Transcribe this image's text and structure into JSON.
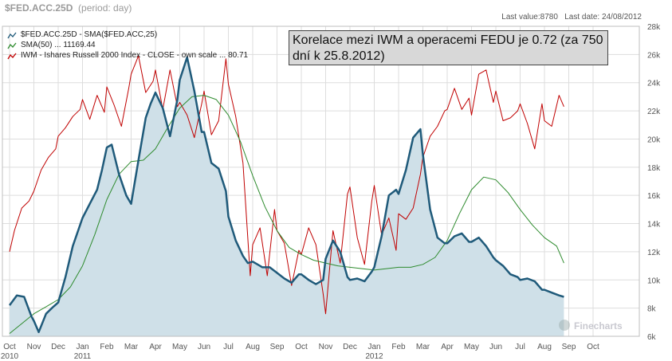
{
  "header": {
    "symbol": "$FED.ACC.25D",
    "period": "(period: day)",
    "last_value_label": "Last value:",
    "last_value": "8780",
    "last_date_label": "Last date:",
    "last_date": "24/08/2012",
    "watermark": "Finecharts"
  },
  "annotation": "Korelace mezi IWM a operacemi FEDU je 0.72 (za 750 dní k 25.8.2012)",
  "colors": {
    "fed_line": "#1f5a7a",
    "fed_fill": "#cfe0e8",
    "sma_line": "#2e8b2e",
    "iwm_line": "#c00000",
    "grid": "#dddddd"
  },
  "chart_data": {
    "type": "line",
    "title": "$FED.ACC.25D (period: day)",
    "xlabel": "",
    "ylabel": "",
    "ylim": [
      6000,
      28000
    ],
    "x_labels": [
      "Oct",
      "Nov",
      "Dec",
      "Jan",
      "Feb",
      "Mar",
      "Apr",
      "May",
      "Jun",
      "Jul",
      "Aug",
      "Sep",
      "Oct",
      "Nov",
      "Dec",
      "Jan",
      "Feb",
      "Mar",
      "Apr",
      "May",
      "Jun",
      "Jul",
      "Aug",
      "Sep",
      "Oct"
    ],
    "year_labels": [
      {
        "month_index": 0,
        "label": "2010"
      },
      {
        "month_index": 3,
        "label": "2011"
      },
      {
        "month_index": 15,
        "label": "2012"
      }
    ],
    "y_ticks": [
      "6k",
      "8k",
      "10k",
      "12k",
      "14k",
      "16k",
      "18k",
      "20k",
      "22k",
      "24k",
      "26k",
      "28k"
    ],
    "y_tick_values": [
      6000,
      8000,
      10000,
      12000,
      14000,
      16000,
      18000,
      20000,
      22000,
      24000,
      26000,
      28000
    ],
    "grid": true,
    "legend_position": "top-left",
    "legend": [
      "$FED.ACC.25D - SMA($FED.ACC,25)",
      "SMA(50) ... 11169.44",
      "IWM - Ishares Russell 2000 Index - CLOSE - own scale ... 80.71"
    ],
    "series": [
      {
        "name": "$FED.ACC.25D - SMA($FED.ACC,25)",
        "x": [
          0,
          0.3,
          0.6,
          0.9,
          1.0,
          1.2,
          1.5,
          1.8,
          2.0,
          2.3,
          2.6,
          3.0,
          3.3,
          3.6,
          3.8,
          4.0,
          4.2,
          4.5,
          4.8,
          5.0,
          5.3,
          5.6,
          5.8,
          6.0,
          6.3,
          6.6,
          6.9,
          7.0,
          7.3,
          7.6,
          7.9,
          8.0,
          8.3,
          8.6,
          8.9,
          9.0,
          9.3,
          9.6,
          9.8,
          10.0,
          10.2,
          10.4,
          10.7,
          11.0,
          11.3,
          11.6,
          11.9,
          12.0,
          12.3,
          12.6,
          12.9,
          13.0,
          13.3,
          13.6,
          13.9,
          14.0,
          14.3,
          14.6,
          14.9,
          15.0,
          15.3,
          15.6,
          15.9,
          16.0,
          16.3,
          16.6,
          16.9,
          17.0,
          17.3,
          17.6,
          17.9,
          18.0,
          18.3,
          18.6,
          18.9,
          19.0,
          19.3,
          19.6,
          19.9,
          20.0,
          20.3,
          20.6,
          20.9,
          21.0,
          21.3,
          21.6,
          21.9,
          22.0,
          22.3,
          22.6,
          22.8
        ],
        "values": [
          8200,
          8900,
          8800,
          7400,
          7100,
          6300,
          7600,
          8100,
          8400,
          10200,
          12400,
          14400,
          15400,
          16400,
          17800,
          19400,
          19600,
          17500,
          16000,
          15400,
          18500,
          21500,
          22500,
          23300,
          22200,
          20200,
          22800,
          24200,
          25800,
          23400,
          20500,
          20500,
          18300,
          17900,
          16300,
          14500,
          12800,
          11700,
          11200,
          11300,
          11100,
          10900,
          10900,
          10500,
          10100,
          9800,
          10400,
          10400,
          10000,
          9700,
          10000,
          11500,
          12800,
          12000,
          10200,
          10000,
          10100,
          9900,
          10600,
          10900,
          13100,
          16000,
          16400,
          16100,
          17800,
          20100,
          20700,
          18900,
          15000,
          13000,
          12600,
          12600,
          13100,
          13300,
          12700,
          12700,
          13000,
          12400,
          11600,
          11400,
          11000,
          10400,
          10200,
          10000,
          10100,
          9900,
          9300,
          9300,
          9100,
          8900,
          8800
        ]
      },
      {
        "name": "SMA(50) ... 11169.44",
        "x": [
          0,
          0.5,
          1.0,
          1.5,
          2.0,
          2.5,
          3.0,
          3.5,
          4.0,
          4.5,
          5.0,
          5.5,
          6.0,
          6.5,
          7.0,
          7.5,
          8.0,
          8.5,
          9.0,
          9.5,
          10.0,
          10.5,
          11.0,
          11.5,
          12.0,
          12.5,
          13.0,
          13.5,
          14.0,
          14.5,
          15.0,
          15.5,
          16.0,
          16.5,
          17.0,
          17.5,
          18.0,
          18.5,
          19.0,
          19.5,
          20.0,
          20.5,
          21.0,
          21.5,
          22.0,
          22.5,
          22.8
        ],
        "values": [
          6200,
          6900,
          7600,
          8100,
          8600,
          9500,
          11000,
          13200,
          15700,
          17500,
          18400,
          18500,
          19300,
          20800,
          22200,
          23000,
          23100,
          22800,
          21700,
          19800,
          17400,
          15200,
          13500,
          12300,
          11800,
          11400,
          11200,
          11000,
          10900,
          10800,
          10700,
          10800,
          10900,
          10900,
          11100,
          11600,
          12800,
          14700,
          16400,
          17300,
          17100,
          16200,
          15000,
          13900,
          13000,
          12400,
          11200
        ]
      },
      {
        "name": "IWM - Ishares Russell 2000 Index - CLOSE - own scale ... 80.71",
        "x": [
          0,
          0.2,
          0.5,
          0.8,
          1.0,
          1.3,
          1.6,
          1.9,
          2.0,
          2.3,
          2.6,
          2.9,
          3.0,
          3.3,
          3.6,
          3.9,
          4.0,
          4.3,
          4.6,
          4.9,
          5.0,
          5.3,
          5.6,
          5.9,
          6.0,
          6.3,
          6.6,
          6.9,
          7.0,
          7.3,
          7.6,
          7.9,
          8.0,
          8.3,
          8.6,
          8.9,
          9.0,
          9.3,
          9.6,
          9.9,
          10.0,
          10.3,
          10.6,
          10.9,
          11.0,
          11.3,
          11.6,
          11.9,
          12.0,
          12.3,
          12.6,
          12.9,
          13.0,
          13.3,
          13.6,
          13.9,
          14.0,
          14.3,
          14.6,
          14.9,
          15.0,
          15.3,
          15.6,
          15.9,
          16.0,
          16.3,
          16.6,
          16.9,
          17.0,
          17.3,
          17.6,
          17.9,
          18.0,
          18.3,
          18.6,
          18.9,
          19.0,
          19.3,
          19.6,
          19.9,
          20.0,
          20.3,
          20.6,
          20.9,
          21.0,
          21.3,
          21.6,
          21.9,
          22.0,
          22.3,
          22.6,
          22.8
        ],
        "values": [
          12000,
          13500,
          15100,
          15600,
          16300,
          17800,
          18700,
          19300,
          20200,
          20800,
          21600,
          22100,
          22800,
          21400,
          23100,
          21900,
          23700,
          22400,
          20900,
          23600,
          24600,
          25900,
          23300,
          24100,
          24900,
          22100,
          24900,
          22300,
          22600,
          21700,
          20100,
          22500,
          23400,
          20300,
          21300,
          25700,
          23900,
          21600,
          18300,
          10300,
          12500,
          13700,
          10300,
          15000,
          13500,
          12600,
          9600,
          12100,
          11800,
          13700,
          12500,
          9000,
          7600,
          13500,
          11200,
          16100,
          16600,
          13000,
          11100,
          15600,
          16700,
          13200,
          14400,
          12100,
          14700,
          14300,
          15100,
          17500,
          18700,
          20200,
          20900,
          22000,
          22100,
          23600,
          22100,
          22900,
          21700,
          24600,
          24900,
          22600,
          23400,
          21300,
          21500,
          22000,
          22500,
          21100,
          19300,
          22500,
          21300,
          20900,
          23100,
          22300
        ]
      }
    ]
  }
}
